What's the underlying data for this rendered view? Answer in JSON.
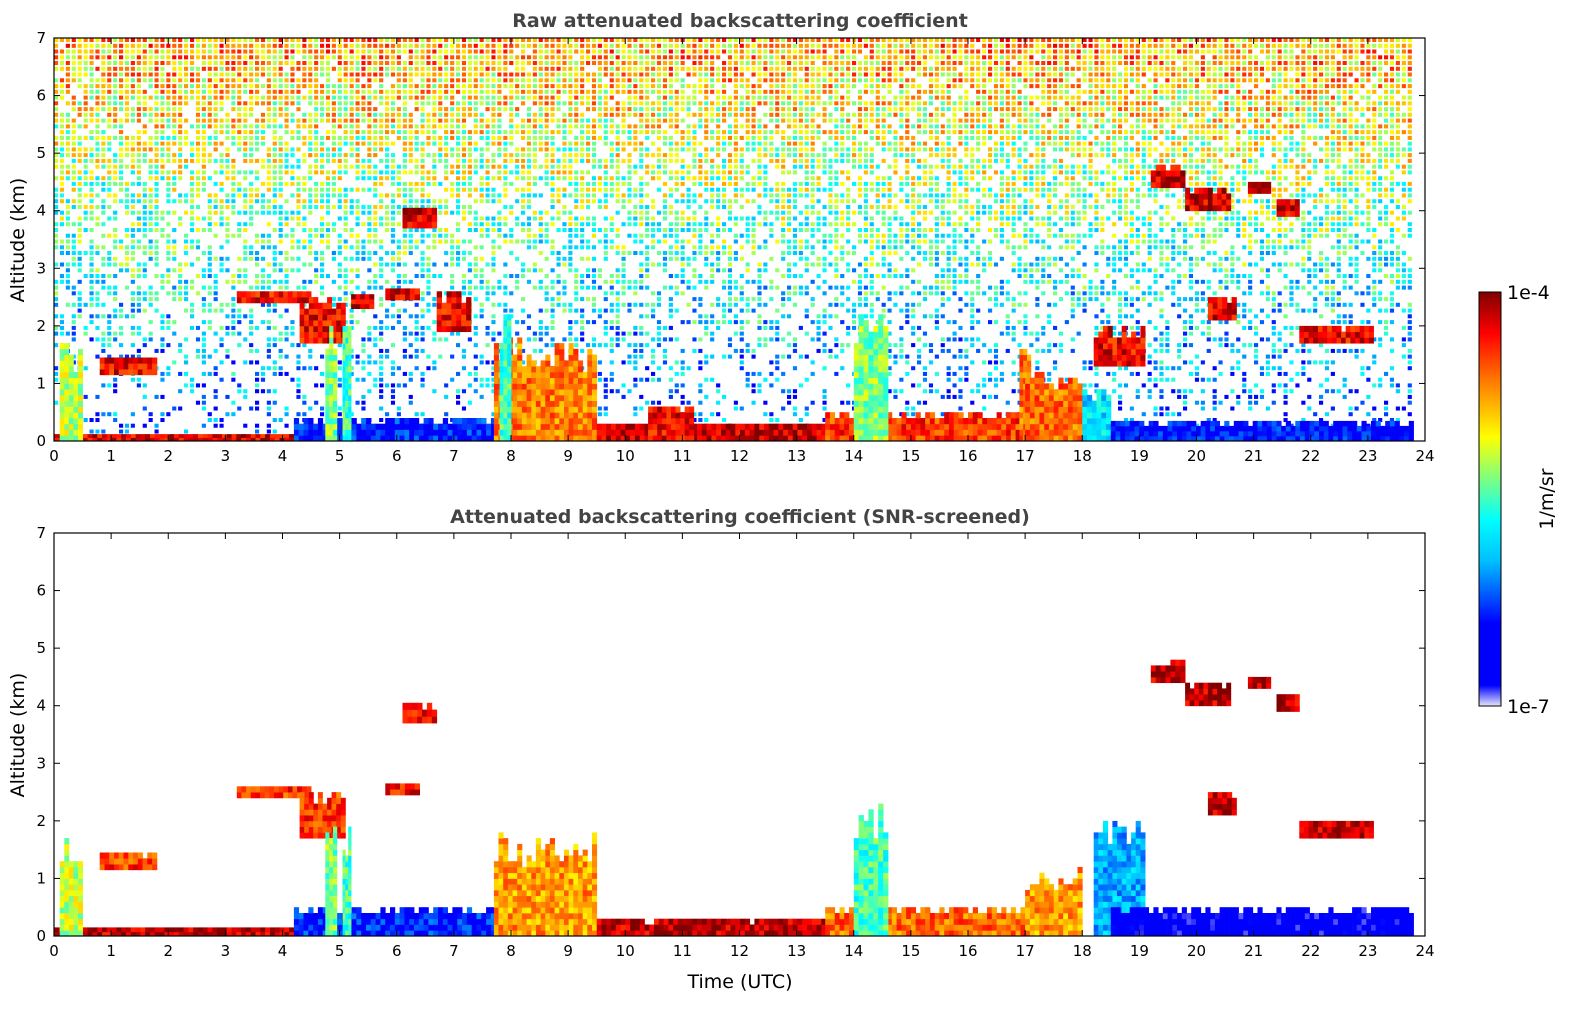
{
  "chart_data": [
    {
      "type": "heatmap",
      "title": "Raw attenuated backscattering coefficient",
      "xlabel": "",
      "ylabel": "Altitude (km)",
      "xlim": [
        0,
        24
      ],
      "ylim": [
        0,
        7
      ],
      "xticks": [
        "0",
        "1",
        "2",
        "3",
        "4",
        "5",
        "6",
        "7",
        "8",
        "9",
        "10",
        "11",
        "12",
        "13",
        "14",
        "15",
        "16",
        "17",
        "18",
        "19",
        "20",
        "21",
        "22",
        "23",
        "24"
      ],
      "yticks": [
        "0",
        "1",
        "2",
        "3",
        "4",
        "5",
        "6",
        "7"
      ],
      "colorscale": "jet",
      "noise": "dense",
      "features": [
        {
          "t0": 0.0,
          "t1": 4.2,
          "z0": 0.0,
          "z1": 0.12,
          "v": 0.92
        },
        {
          "t0": 0.1,
          "t1": 0.5,
          "z0": 0.0,
          "z1": 1.7,
          "v": 0.6
        },
        {
          "t0": 0.8,
          "t1": 1.8,
          "z0": 1.15,
          "z1": 1.45,
          "v": 0.9
        },
        {
          "t0": 3.2,
          "t1": 4.5,
          "z0": 2.4,
          "z1": 2.6,
          "v": 0.9
        },
        {
          "t0": 4.3,
          "t1": 5.1,
          "z0": 1.7,
          "z1": 2.5,
          "v": 0.9
        },
        {
          "t0": 4.2,
          "t1": 7.9,
          "z0": 0.0,
          "z1": 0.4,
          "v": 0.22
        },
        {
          "t0": 4.75,
          "t1": 4.95,
          "z0": 0.0,
          "z1": 2.0,
          "v": 0.55
        },
        {
          "t0": 5.05,
          "t1": 5.2,
          "z0": 0.0,
          "z1": 2.0,
          "v": 0.5
        },
        {
          "t0": 5.2,
          "t1": 5.6,
          "z0": 2.3,
          "z1": 2.55,
          "v": 0.92
        },
        {
          "t0": 5.8,
          "t1": 6.4,
          "z0": 2.45,
          "z1": 2.65,
          "v": 0.93
        },
        {
          "t0": 6.1,
          "t1": 6.7,
          "z0": 3.7,
          "z1": 4.05,
          "v": 0.94
        },
        {
          "t0": 6.7,
          "t1": 7.3,
          "z0": 1.9,
          "z1": 2.6,
          "v": 0.9
        },
        {
          "t0": 7.7,
          "t1": 9.5,
          "z0": 0.0,
          "z1": 1.8,
          "v": 0.78
        },
        {
          "t0": 7.8,
          "t1": 8.0,
          "z0": 0.0,
          "z1": 2.4,
          "v": 0.5
        },
        {
          "t0": 9.5,
          "t1": 13.6,
          "z0": 0.0,
          "z1": 0.3,
          "v": 0.95
        },
        {
          "t0": 10.4,
          "t1": 11.2,
          "z0": 0.0,
          "z1": 0.6,
          "v": 0.9
        },
        {
          "t0": 13.5,
          "t1": 17.0,
          "z0": 0.0,
          "z1": 0.5,
          "v": 0.85
        },
        {
          "t0": 14.0,
          "t1": 14.6,
          "z0": 0.0,
          "z1": 2.3,
          "v": 0.55
        },
        {
          "t0": 16.9,
          "t1": 17.1,
          "z0": 0.0,
          "z1": 2.0,
          "v": 0.8
        },
        {
          "t0": 17.0,
          "t1": 18.0,
          "z0": 0.0,
          "z1": 1.2,
          "v": 0.8
        },
        {
          "t0": 18.0,
          "t1": 18.5,
          "z0": 0.0,
          "z1": 1.0,
          "v": 0.4
        },
        {
          "t0": 18.2,
          "t1": 19.1,
          "z0": 1.3,
          "z1": 2.0,
          "v": 0.9
        },
        {
          "t0": 18.5,
          "t1": 23.8,
          "z0": 0.0,
          "z1": 0.35,
          "v": 0.2
        },
        {
          "t0": 19.2,
          "t1": 19.8,
          "z0": 4.4,
          "z1": 4.8,
          "v": 0.94
        },
        {
          "t0": 19.8,
          "t1": 20.6,
          "z0": 4.0,
          "z1": 4.4,
          "v": 0.94
        },
        {
          "t0": 20.9,
          "t1": 21.3,
          "z0": 4.3,
          "z1": 4.5,
          "v": 0.94
        },
        {
          "t0": 21.4,
          "t1": 21.8,
          "z0": 3.9,
          "z1": 4.2,
          "v": 0.93
        },
        {
          "t0": 20.2,
          "t1": 20.7,
          "z0": 2.1,
          "z1": 2.5,
          "v": 0.92
        },
        {
          "t0": 21.8,
          "t1": 23.1,
          "z0": 1.7,
          "z1": 2.0,
          "v": 0.9
        }
      ]
    },
    {
      "type": "heatmap",
      "title": "Attenuated backscattering coefficient (SNR-screened)",
      "xlabel": "Time (UTC)",
      "ylabel": "Altitude (km)",
      "xlim": [
        0,
        24
      ],
      "ylim": [
        0,
        7
      ],
      "xticks": [
        "0",
        "1",
        "2",
        "3",
        "4",
        "5",
        "6",
        "7",
        "8",
        "9",
        "10",
        "11",
        "12",
        "13",
        "14",
        "15",
        "16",
        "17",
        "18",
        "19",
        "20",
        "21",
        "22",
        "23",
        "24"
      ],
      "yticks": [
        "0",
        "1",
        "2",
        "3",
        "4",
        "5",
        "6",
        "7"
      ],
      "colorscale": "jet",
      "noise": "none",
      "features": [
        {
          "t0": 0.0,
          "t1": 4.2,
          "z0": 0.0,
          "z1": 0.15,
          "v": 0.95
        },
        {
          "t0": 0.1,
          "t1": 0.5,
          "z0": 0.0,
          "z1": 1.7,
          "v": 0.6
        },
        {
          "t0": 0.8,
          "t1": 1.8,
          "z0": 1.15,
          "z1": 1.45,
          "v": 0.85
        },
        {
          "t0": 3.2,
          "t1": 4.5,
          "z0": 2.4,
          "z1": 2.6,
          "v": 0.85
        },
        {
          "t0": 4.2,
          "t1": 7.9,
          "z0": 0.0,
          "z1": 0.5,
          "v": 0.22
        },
        {
          "t0": 4.3,
          "t1": 5.1,
          "z0": 1.7,
          "z1": 2.5,
          "v": 0.85
        },
        {
          "t0": 4.75,
          "t1": 4.95,
          "z0": 0.0,
          "z1": 2.0,
          "v": 0.55
        },
        {
          "t0": 5.05,
          "t1": 5.2,
          "z0": 0.0,
          "z1": 2.0,
          "v": 0.5
        },
        {
          "t0": 5.8,
          "t1": 6.4,
          "z0": 2.45,
          "z1": 2.65,
          "v": 0.9
        },
        {
          "t0": 6.1,
          "t1": 6.7,
          "z0": 3.7,
          "z1": 4.05,
          "v": 0.9
        },
        {
          "t0": 7.7,
          "t1": 9.5,
          "z0": 0.0,
          "z1": 1.8,
          "v": 0.75
        },
        {
          "t0": 9.5,
          "t1": 13.6,
          "z0": 0.0,
          "z1": 0.3,
          "v": 0.95
        },
        {
          "t0": 13.5,
          "t1": 17.0,
          "z0": 0.0,
          "z1": 0.5,
          "v": 0.8
        },
        {
          "t0": 14.0,
          "t1": 14.6,
          "z0": 0.0,
          "z1": 2.4,
          "v": 0.5
        },
        {
          "t0": 17.0,
          "t1": 18.0,
          "z0": 0.0,
          "z1": 1.2,
          "v": 0.75
        },
        {
          "t0": 18.2,
          "t1": 19.1,
          "z0": 0.0,
          "z1": 2.0,
          "v": 0.35
        },
        {
          "t0": 18.5,
          "t1": 23.8,
          "z0": 0.0,
          "z1": 0.5,
          "v": 0.12
        },
        {
          "t0": 19.2,
          "t1": 19.8,
          "z0": 4.4,
          "z1": 4.8,
          "v": 0.95
        },
        {
          "t0": 19.8,
          "t1": 20.6,
          "z0": 4.0,
          "z1": 4.4,
          "v": 0.95
        },
        {
          "t0": 20.9,
          "t1": 21.3,
          "z0": 4.3,
          "z1": 4.5,
          "v": 0.95
        },
        {
          "t0": 21.4,
          "t1": 21.8,
          "z0": 3.9,
          "z1": 4.2,
          "v": 0.95
        },
        {
          "t0": 20.2,
          "t1": 20.7,
          "z0": 2.1,
          "z1": 2.5,
          "v": 0.95
        },
        {
          "t0": 21.8,
          "t1": 23.1,
          "z0": 1.7,
          "z1": 2.0,
          "v": 0.95
        }
      ]
    }
  ],
  "colorbar": {
    "label": "1/m/sr",
    "max_label": "1e-4",
    "min_label": "1e-7",
    "colors": [
      "#e6e6fa",
      "#0000ff",
      "#00bfff",
      "#00ffff",
      "#7fff7f",
      "#ffff00",
      "#ff7f00",
      "#ff0000",
      "#800000"
    ]
  }
}
